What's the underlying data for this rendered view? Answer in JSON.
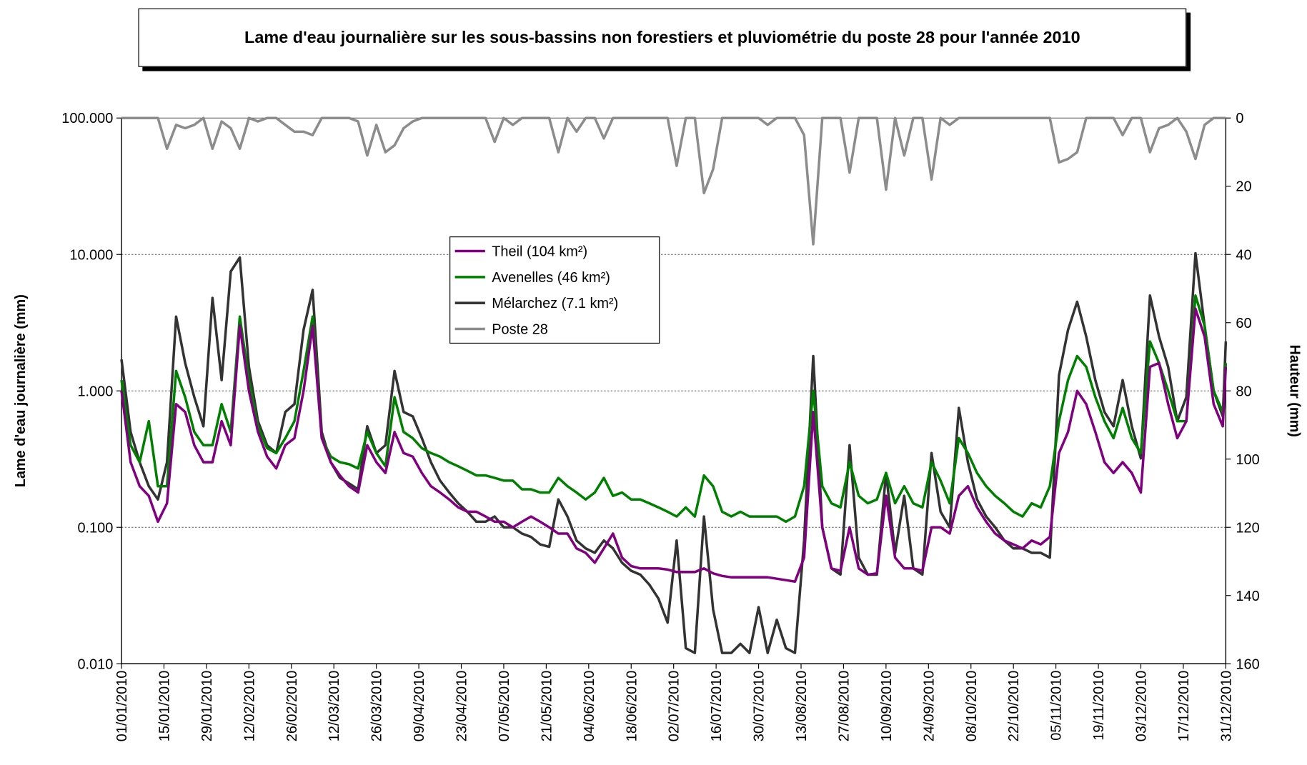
{
  "chart_data": {
    "type": "line",
    "title": "Lame d'eau journalière sur les sous-bassins non forestiers et pluviométrie du poste 28 pour l'année 2010",
    "y_label": "Lame d'eau journalière (mm)",
    "y2_label": "Hauteur (mm)",
    "yscale": "log",
    "ylim": [
      0.01,
      100
    ],
    "yticks": [
      {
        "value": 0.01,
        "label": "0.010"
      },
      {
        "value": 0.1,
        "label": "0.100"
      },
      {
        "value": 1,
        "label": "1.000"
      },
      {
        "value": 10,
        "label": "10.000"
      },
      {
        "value": 100,
        "label": "100.000"
      }
    ],
    "y2lim": [
      0,
      160
    ],
    "y2_reversed": true,
    "y2ticks": [
      0,
      20,
      40,
      60,
      80,
      100,
      120,
      140,
      160
    ],
    "grid": true,
    "legend": "upper-center",
    "xlim": [
      "01/01/2010",
      "31/12/2010"
    ],
    "xticks": [
      "01/01/2010",
      "15/01/2010",
      "29/01/2010",
      "12/02/2010",
      "26/02/2010",
      "12/03/2010",
      "26/03/2010",
      "09/04/2010",
      "23/04/2010",
      "07/05/2010",
      "21/05/2010",
      "04/06/2010",
      "18/06/2010",
      "02/07/2010",
      "16/07/2010",
      "30/07/2010",
      "13/08/2010",
      "27/08/2010",
      "10/09/2010",
      "24/09/2010",
      "08/10/2010",
      "22/10/2010",
      "05/11/2010",
      "19/11/2010",
      "03/12/2010",
      "17/12/2010",
      "31/12/2010"
    ],
    "x": [
      "01/01/2010",
      "04/01/2010",
      "07/01/2010",
      "10/01/2010",
      "13/01/2010",
      "16/01/2010",
      "19/01/2010",
      "22/01/2010",
      "25/01/2010",
      "28/01/2010",
      "31/01/2010",
      "03/02/2010",
      "06/02/2010",
      "09/02/2010",
      "12/02/2010",
      "15/02/2010",
      "18/02/2010",
      "21/02/2010",
      "24/02/2010",
      "27/02/2010",
      "02/03/2010",
      "05/03/2010",
      "08/03/2010",
      "11/03/2010",
      "14/03/2010",
      "17/03/2010",
      "20/03/2010",
      "23/03/2010",
      "26/03/2010",
      "29/03/2010",
      "01/04/2010",
      "04/04/2010",
      "07/04/2010",
      "10/04/2010",
      "13/04/2010",
      "16/04/2010",
      "19/04/2010",
      "22/04/2010",
      "25/04/2010",
      "28/04/2010",
      "01/05/2010",
      "04/05/2010",
      "07/05/2010",
      "10/05/2010",
      "13/05/2010",
      "16/05/2010",
      "19/05/2010",
      "22/05/2010",
      "25/05/2010",
      "28/05/2010",
      "31/05/2010",
      "03/06/2010",
      "06/06/2010",
      "09/06/2010",
      "12/06/2010",
      "15/06/2010",
      "18/06/2010",
      "21/06/2010",
      "24/06/2010",
      "27/06/2010",
      "30/06/2010",
      "03/07/2010",
      "06/07/2010",
      "09/07/2010",
      "12/07/2010",
      "15/07/2010",
      "18/07/2010",
      "21/07/2010",
      "24/07/2010",
      "27/07/2010",
      "30/07/2010",
      "02/08/2010",
      "05/08/2010",
      "08/08/2010",
      "11/08/2010",
      "14/08/2010",
      "17/08/2010",
      "20/08/2010",
      "23/08/2010",
      "26/08/2010",
      "29/08/2010",
      "01/09/2010",
      "04/09/2010",
      "07/09/2010",
      "10/09/2010",
      "13/09/2010",
      "16/09/2010",
      "19/09/2010",
      "22/09/2010",
      "25/09/2010",
      "28/09/2010",
      "01/10/2010",
      "04/10/2010",
      "07/10/2010",
      "10/10/2010",
      "13/10/2010",
      "16/10/2010",
      "19/10/2010",
      "22/10/2010",
      "25/10/2010",
      "28/10/2010",
      "31/10/2010",
      "03/11/2010",
      "06/11/2010",
      "09/11/2010",
      "12/11/2010",
      "15/11/2010",
      "18/11/2010",
      "21/11/2010",
      "24/11/2010",
      "27/11/2010",
      "30/11/2010",
      "03/12/2010",
      "06/12/2010",
      "09/12/2010",
      "12/12/2010",
      "15/12/2010",
      "18/12/2010",
      "21/12/2010",
      "24/12/2010",
      "27/12/2010",
      "30/12/2010",
      "31/12/2010"
    ],
    "series": [
      {
        "name": "Theil (104 km²)",
        "color": "#800080",
        "values": [
          1.0,
          0.3,
          0.2,
          0.17,
          0.11,
          0.15,
          0.8,
          0.7,
          0.4,
          0.3,
          0.3,
          0.6,
          0.4,
          3,
          1.0,
          0.5,
          0.33,
          0.27,
          0.4,
          0.45,
          1.0,
          3,
          0.45,
          0.3,
          0.24,
          0.2,
          0.18,
          0.4,
          0.3,
          0.25,
          0.5,
          0.35,
          0.33,
          0.25,
          0.2,
          0.18,
          0.16,
          0.14,
          0.13,
          0.13,
          0.12,
          0.11,
          0.11,
          0.1,
          0.11,
          0.12,
          0.11,
          0.1,
          0.09,
          0.09,
          0.07,
          0.065,
          0.055,
          0.07,
          0.09,
          0.06,
          0.052,
          0.05,
          0.05,
          0.05,
          0.049,
          0.047,
          0.047,
          0.047,
          0.05,
          0.046,
          0.044,
          0.043,
          0.043,
          0.043,
          0.043,
          0.043,
          0.042,
          0.041,
          0.04,
          0.06,
          0.7,
          0.1,
          0.05,
          0.048,
          0.1,
          0.05,
          0.045,
          0.046,
          0.17,
          0.06,
          0.05,
          0.05,
          0.048,
          0.1,
          0.1,
          0.09,
          0.17,
          0.2,
          0.14,
          0.11,
          0.09,
          0.08,
          0.075,
          0.07,
          0.08,
          0.075,
          0.085,
          0.35,
          0.5,
          1.0,
          0.8,
          0.5,
          0.3,
          0.25,
          0.3,
          0.25,
          0.18,
          1.5,
          1.6,
          0.8,
          0.45,
          0.6,
          4,
          2.5,
          0.8,
          0.55,
          1.5
        ]
      },
      {
        "name": "Avenelles (46 km²)",
        "color": "#008000",
        "values": [
          1.2,
          0.4,
          0.3,
          0.6,
          0.2,
          0.2,
          1.4,
          0.9,
          0.5,
          0.4,
          0.4,
          0.8,
          0.5,
          3.5,
          1.2,
          0.55,
          0.38,
          0.35,
          0.45,
          0.6,
          1.4,
          3.5,
          0.45,
          0.33,
          0.3,
          0.29,
          0.27,
          0.5,
          0.35,
          0.28,
          0.9,
          0.5,
          0.45,
          0.38,
          0.35,
          0.33,
          0.3,
          0.28,
          0.26,
          0.24,
          0.24,
          0.23,
          0.22,
          0.22,
          0.19,
          0.19,
          0.18,
          0.18,
          0.23,
          0.2,
          0.18,
          0.16,
          0.18,
          0.23,
          0.17,
          0.18,
          0.16,
          0.16,
          0.15,
          0.14,
          0.13,
          0.12,
          0.14,
          0.12,
          0.24,
          0.2,
          0.13,
          0.12,
          0.13,
          0.12,
          0.12,
          0.12,
          0.12,
          0.11,
          0.12,
          0.2,
          1.0,
          0.2,
          0.15,
          0.14,
          0.3,
          0.17,
          0.15,
          0.16,
          0.25,
          0.15,
          0.2,
          0.15,
          0.14,
          0.3,
          0.22,
          0.15,
          0.45,
          0.35,
          0.25,
          0.2,
          0.17,
          0.15,
          0.13,
          0.12,
          0.15,
          0.14,
          0.2,
          0.6,
          1.2,
          1.8,
          1.5,
          0.9,
          0.6,
          0.45,
          0.75,
          0.45,
          0.35,
          2.3,
          1.6,
          1.0,
          0.6,
          0.6,
          5,
          3.0,
          1.0,
          0.7,
          1.6
        ]
      },
      {
        "name": "Mélarchez (7.1 km²)",
        "color": "#333333",
        "values": [
          1.7,
          0.5,
          0.3,
          0.2,
          0.16,
          0.3,
          3.5,
          1.6,
          0.9,
          0.55,
          4.8,
          1.2,
          7.5,
          9.5,
          1.5,
          0.6,
          0.4,
          0.35,
          0.7,
          0.8,
          2.8,
          5.5,
          0.5,
          0.3,
          0.23,
          0.21,
          0.19,
          0.55,
          0.35,
          0.4,
          1.4,
          0.7,
          0.65,
          0.45,
          0.3,
          0.22,
          0.18,
          0.15,
          0.13,
          0.11,
          0.11,
          0.12,
          0.1,
          0.1,
          0.09,
          0.085,
          0.075,
          0.072,
          0.16,
          0.12,
          0.08,
          0.07,
          0.065,
          0.08,
          0.07,
          0.055,
          0.048,
          0.045,
          0.038,
          0.03,
          0.02,
          0.08,
          0.013,
          0.012,
          0.12,
          0.025,
          0.012,
          0.012,
          0.014,
          0.012,
          0.026,
          0.012,
          0.021,
          0.013,
          0.012,
          0.08,
          1.8,
          0.1,
          0.05,
          0.045,
          0.4,
          0.06,
          0.045,
          0.045,
          0.25,
          0.065,
          0.17,
          0.05,
          0.045,
          0.35,
          0.13,
          0.1,
          0.75,
          0.3,
          0.16,
          0.12,
          0.1,
          0.08,
          0.07,
          0.07,
          0.065,
          0.065,
          0.06,
          1.3,
          2.8,
          4.5,
          2.5,
          1.2,
          0.7,
          0.55,
          1.2,
          0.55,
          0.32,
          5.0,
          2.5,
          1.5,
          0.6,
          0.9,
          10.2,
          3,
          1.0,
          0.65,
          2.3
        ]
      },
      {
        "name": "Poste 28",
        "color": "#8c8c8c",
        "axis": "y2",
        "values": [
          0,
          0,
          0,
          0,
          0,
          9,
          2,
          3,
          2,
          0,
          9,
          1,
          3,
          9,
          0,
          1,
          0,
          0,
          2,
          4,
          4,
          5,
          0,
          0,
          0,
          0,
          1,
          11,
          2,
          10,
          8,
          3,
          1,
          0,
          0,
          0,
          0,
          0,
          0,
          0,
          0,
          7,
          0,
          2,
          0,
          0,
          0,
          0,
          10,
          0,
          4,
          0,
          0,
          6,
          0,
          0,
          0,
          0,
          0,
          0,
          0,
          14,
          0,
          0,
          22,
          15,
          0,
          0,
          0,
          0,
          0,
          2,
          0,
          0,
          0,
          5,
          37,
          0,
          0,
          0,
          16,
          0,
          0,
          0,
          21,
          0,
          11,
          0,
          0,
          18,
          0,
          2,
          0,
          0,
          0,
          0,
          0,
          0,
          0,
          0,
          0,
          0,
          0,
          13,
          12,
          10,
          0,
          0,
          0,
          0,
          5,
          0,
          0,
          10,
          3,
          2,
          0,
          4,
          12,
          2,
          0,
          0,
          0
        ]
      }
    ]
  }
}
